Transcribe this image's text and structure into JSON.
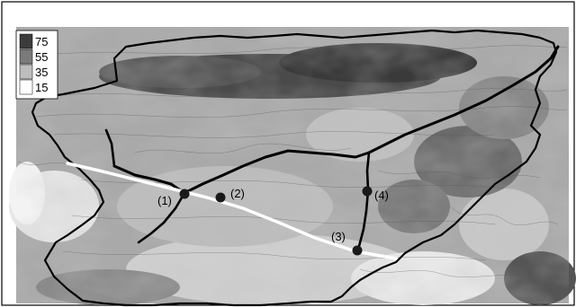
{
  "legend": {
    "items": [
      {
        "label": "75",
        "color": "#3c3c3c"
      },
      {
        "label": "55",
        "color": "#7a7a7a"
      },
      {
        "label": "35",
        "color": "#bdbdbd"
      },
      {
        "label": "15",
        "color": "#ffffff"
      }
    ]
  },
  "points": [
    {
      "label": "(1)"
    },
    {
      "label": "(2)"
    },
    {
      "label": "(3)"
    },
    {
      "label": "(4)"
    }
  ],
  "colors": {
    "boundary": "#000000",
    "river": "#000000",
    "transect": "#ffffff",
    "point": "#1a1a1a"
  }
}
